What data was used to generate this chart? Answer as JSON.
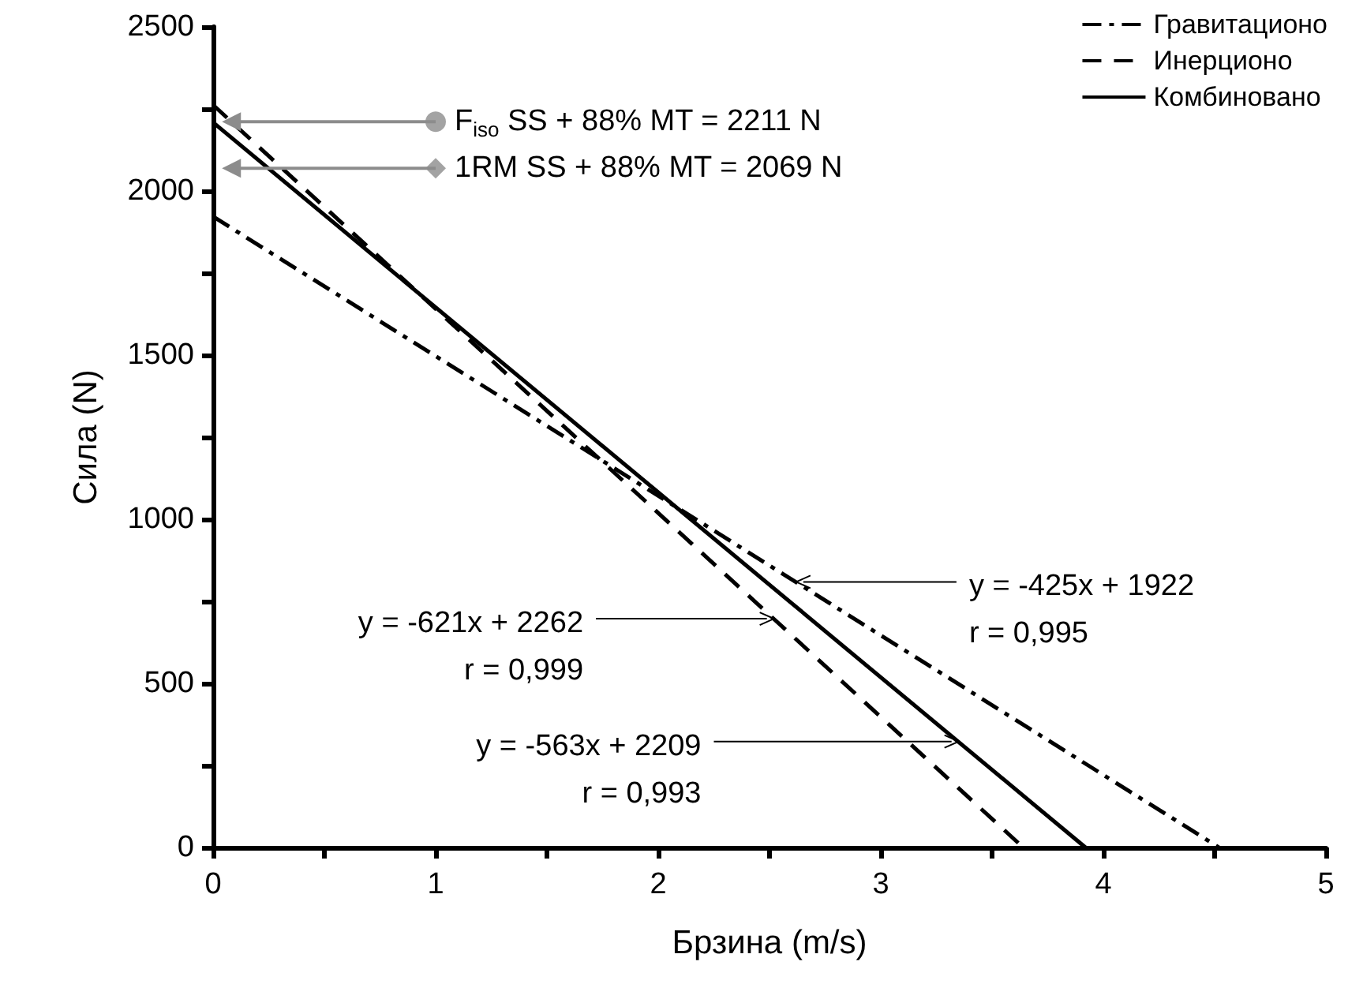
{
  "chart_data": {
    "type": "line",
    "xlabel": "Брзина (m/s)",
    "ylabel": "Сила (N)",
    "xlim": [
      0,
      5
    ],
    "xticks": [
      0,
      {
        "value": 0.5,
        "label": null
      },
      1,
      {
        "value": 1.5,
        "label": null
      },
      2,
      {
        "value": 2.5,
        "label": null
      },
      3,
      {
        "value": 3.5,
        "label": null
      },
      4,
      {
        "value": 4.5,
        "label": null
      },
      5
    ],
    "ylim": [
      0,
      2500
    ],
    "yticks": [
      0,
      {
        "value": 250,
        "label": null
      },
      500,
      {
        "value": 750,
        "label": null
      },
      1000,
      {
        "value": 1250,
        "label": null
      },
      1500,
      {
        "value": 1750,
        "label": null
      },
      2000,
      {
        "value": 2250,
        "label": null
      },
      2500
    ],
    "grid": false,
    "legend": "top right",
    "marker": "none",
    "series": [
      {
        "name": "Гравитационо",
        "color": "#000000",
        "line_style": "dashdot",
        "x": [
          0,
          4.52
        ],
        "values": [
          1922,
          0
        ]
      },
      {
        "name": "Инерционо",
        "color": "#000000",
        "line_style": "dashed",
        "x": [
          0,
          3.64
        ],
        "values": [
          2262,
          0
        ]
      },
      {
        "name": "Комбиновано",
        "color": "#000000",
        "line_style": "solid",
        "x": [
          0,
          3.92
        ],
        "values": [
          2209,
          0
        ]
      },
      {
        "type": "scatter",
        "color": "#8c8c8c",
        "marker": "circle",
        "x": [
          1
        ],
        "values": [
          2211
        ]
      },
      {
        "type": "scatter",
        "color": "#8c8c8c",
        "marker": "diamond",
        "x": [
          1
        ],
        "values": [
          2069
        ]
      }
    ],
    "annotations": [
      {
        "text": "F$_{iso}$ SS + 88% MT = 2211 N",
        "x": 1,
        "y": 2211
      },
      {
        "text": "1RM SS + 88% MT = 2069 N",
        "x": 1,
        "y": 2069
      },
      {
        "text": "y = -425x + 1922\nr = 0,995",
        "x": 2.62,
        "y": 809
      },
      {
        "text": "y = -621x + 2262\nr = 0,999",
        "x": 2.52,
        "y": 697
      },
      {
        "text": "y = -563x + 2209\nr = 0,993",
        "x": 3.35,
        "y": 323
      }
    ]
  }
}
